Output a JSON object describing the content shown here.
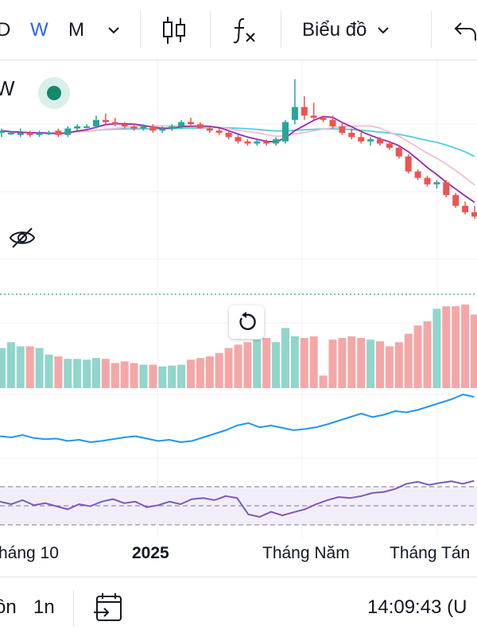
{
  "toolbar": {
    "interval_d": "D",
    "interval_w": "W",
    "interval_m": "M",
    "chart_menu_label": "Biểu đồ"
  },
  "legend": {
    "symbol_suffix": "W"
  },
  "time_axis": {
    "label_1": "háng 10",
    "label_2": "2025",
    "label_3": "Tháng Năm",
    "label_4": "Tháng Tán"
  },
  "bottom": {
    "range_1": "ồn",
    "range_2": "1n",
    "clock": "14:09:43 (U"
  },
  "colors": {
    "up": "#26a69a",
    "down": "#ef5350",
    "vol_up": "#91d5cb",
    "vol_down": "#f5a7a7",
    "accent": "#2962ff",
    "ma_fast": "#9c27b0",
    "ma_mid": "#f8bbd0",
    "ma_slow": "#4dd0e1",
    "line_indicator": "#2196f3",
    "rsi": "#7e57c2"
  },
  "chart_data": {
    "type": "candlestick",
    "candles": [
      [
        0,
        0.7,
        0.72,
        0.68,
        0.71
      ],
      [
        1,
        0.7,
        0.71,
        0.69,
        0.7
      ],
      [
        2,
        0.69,
        0.72,
        0.68,
        0.7
      ],
      [
        3,
        0.7,
        0.71,
        0.68,
        0.69
      ],
      [
        4,
        0.69,
        0.71,
        0.68,
        0.7
      ],
      [
        5,
        0.7,
        0.71,
        0.69,
        0.7
      ],
      [
        6,
        0.71,
        0.72,
        0.68,
        0.69
      ],
      [
        7,
        0.69,
        0.73,
        0.68,
        0.72
      ],
      [
        8,
        0.72,
        0.74,
        0.71,
        0.73
      ],
      [
        9,
        0.73,
        0.74,
        0.72,
        0.73
      ],
      [
        10,
        0.73,
        0.78,
        0.72,
        0.76
      ],
      [
        11,
        0.76,
        0.79,
        0.74,
        0.75
      ],
      [
        12,
        0.75,
        0.77,
        0.73,
        0.74
      ],
      [
        13,
        0.74,
        0.75,
        0.72,
        0.73
      ],
      [
        14,
        0.73,
        0.74,
        0.71,
        0.72
      ],
      [
        15,
        0.72,
        0.74,
        0.71,
        0.73
      ],
      [
        16,
        0.73,
        0.74,
        0.7,
        0.71
      ],
      [
        17,
        0.71,
        0.73,
        0.7,
        0.72
      ],
      [
        18,
        0.72,
        0.74,
        0.71,
        0.73
      ],
      [
        19,
        0.73,
        0.76,
        0.72,
        0.75
      ],
      [
        20,
        0.75,
        0.77,
        0.73,
        0.74
      ],
      [
        21,
        0.74,
        0.75,
        0.72,
        0.72
      ],
      [
        22,
        0.72,
        0.73,
        0.7,
        0.71
      ],
      [
        23,
        0.71,
        0.72,
        0.69,
        0.7
      ],
      [
        24,
        0.7,
        0.71,
        0.67,
        0.68
      ],
      [
        25,
        0.68,
        0.69,
        0.65,
        0.66
      ],
      [
        26,
        0.66,
        0.67,
        0.64,
        0.65
      ],
      [
        27,
        0.65,
        0.67,
        0.64,
        0.66
      ],
      [
        28,
        0.66,
        0.67,
        0.64,
        0.65
      ],
      [
        29,
        0.65,
        0.68,
        0.64,
        0.67
      ],
      [
        30,
        0.66,
        0.76,
        0.65,
        0.75
      ],
      [
        31,
        0.76,
        0.95,
        0.74,
        0.82
      ],
      [
        32,
        0.82,
        0.87,
        0.76,
        0.78
      ],
      [
        33,
        0.78,
        0.84,
        0.76,
        0.77
      ],
      [
        34,
        0.77,
        0.78,
        0.75,
        0.76
      ],
      [
        35,
        0.76,
        0.78,
        0.72,
        0.73
      ],
      [
        36,
        0.73,
        0.75,
        0.69,
        0.7
      ],
      [
        37,
        0.7,
        0.72,
        0.67,
        0.68
      ],
      [
        38,
        0.68,
        0.7,
        0.65,
        0.66
      ],
      [
        39,
        0.66,
        0.68,
        0.64,
        0.67
      ],
      [
        40,
        0.67,
        0.68,
        0.64,
        0.65
      ],
      [
        41,
        0.65,
        0.66,
        0.62,
        0.63
      ],
      [
        42,
        0.63,
        0.64,
        0.58,
        0.59
      ],
      [
        43,
        0.59,
        0.6,
        0.51,
        0.52
      ],
      [
        44,
        0.52,
        0.53,
        0.48,
        0.49
      ],
      [
        45,
        0.49,
        0.5,
        0.45,
        0.46
      ],
      [
        46,
        0.46,
        0.48,
        0.44,
        0.47
      ],
      [
        47,
        0.47,
        0.48,
        0.4,
        0.41
      ],
      [
        48,
        0.41,
        0.42,
        0.35,
        0.36
      ],
      [
        49,
        0.36,
        0.38,
        0.32,
        0.33
      ],
      [
        50,
        0.33,
        0.36,
        0.3,
        0.31
      ]
    ],
    "volume": [
      0.48,
      0.55,
      0.5,
      0.5,
      0.48,
      0.4,
      0.38,
      0.35,
      0.35,
      0.34,
      0.36,
      0.35,
      0.3,
      0.32,
      0.3,
      0.28,
      0.28,
      0.26,
      0.27,
      0.28,
      0.34,
      0.36,
      0.38,
      0.42,
      0.48,
      0.52,
      0.55,
      0.58,
      0.6,
      0.55,
      0.72,
      0.62,
      0.6,
      0.62,
      0.15,
      0.58,
      0.6,
      0.62,
      0.6,
      0.58,
      0.56,
      0.5,
      0.55,
      0.65,
      0.75,
      0.8,
      0.95,
      0.98,
      0.98,
      1.0,
      0.88
    ],
    "line_indicator": [
      0.3,
      0.28,
      0.32,
      0.27,
      0.25,
      0.26,
      0.22,
      0.24,
      0.2,
      0.22,
      0.25,
      0.28,
      0.3,
      0.26,
      0.22,
      0.24,
      0.2,
      0.22,
      0.28,
      0.34,
      0.4,
      0.48,
      0.52,
      0.45,
      0.48,
      0.44,
      0.4,
      0.42,
      0.45,
      0.5,
      0.56,
      0.62,
      0.68,
      0.62,
      0.66,
      0.72,
      0.7,
      0.74,
      0.8,
      0.86,
      0.92,
      1.0,
      0.96
    ],
    "rsi": [
      0.55,
      0.5,
      0.58,
      0.48,
      0.52,
      0.46,
      0.4,
      0.5,
      0.46,
      0.55,
      0.6,
      0.52,
      0.55,
      0.44,
      0.48,
      0.55,
      0.5,
      0.6,
      0.62,
      0.58,
      0.66,
      0.62,
      0.3,
      0.25,
      0.35,
      0.28,
      0.34,
      0.4,
      0.5,
      0.58,
      0.64,
      0.62,
      0.66,
      0.72,
      0.74,
      0.8,
      0.9,
      0.94,
      0.88,
      0.92,
      0.95,
      0.9,
      0.96
    ]
  }
}
